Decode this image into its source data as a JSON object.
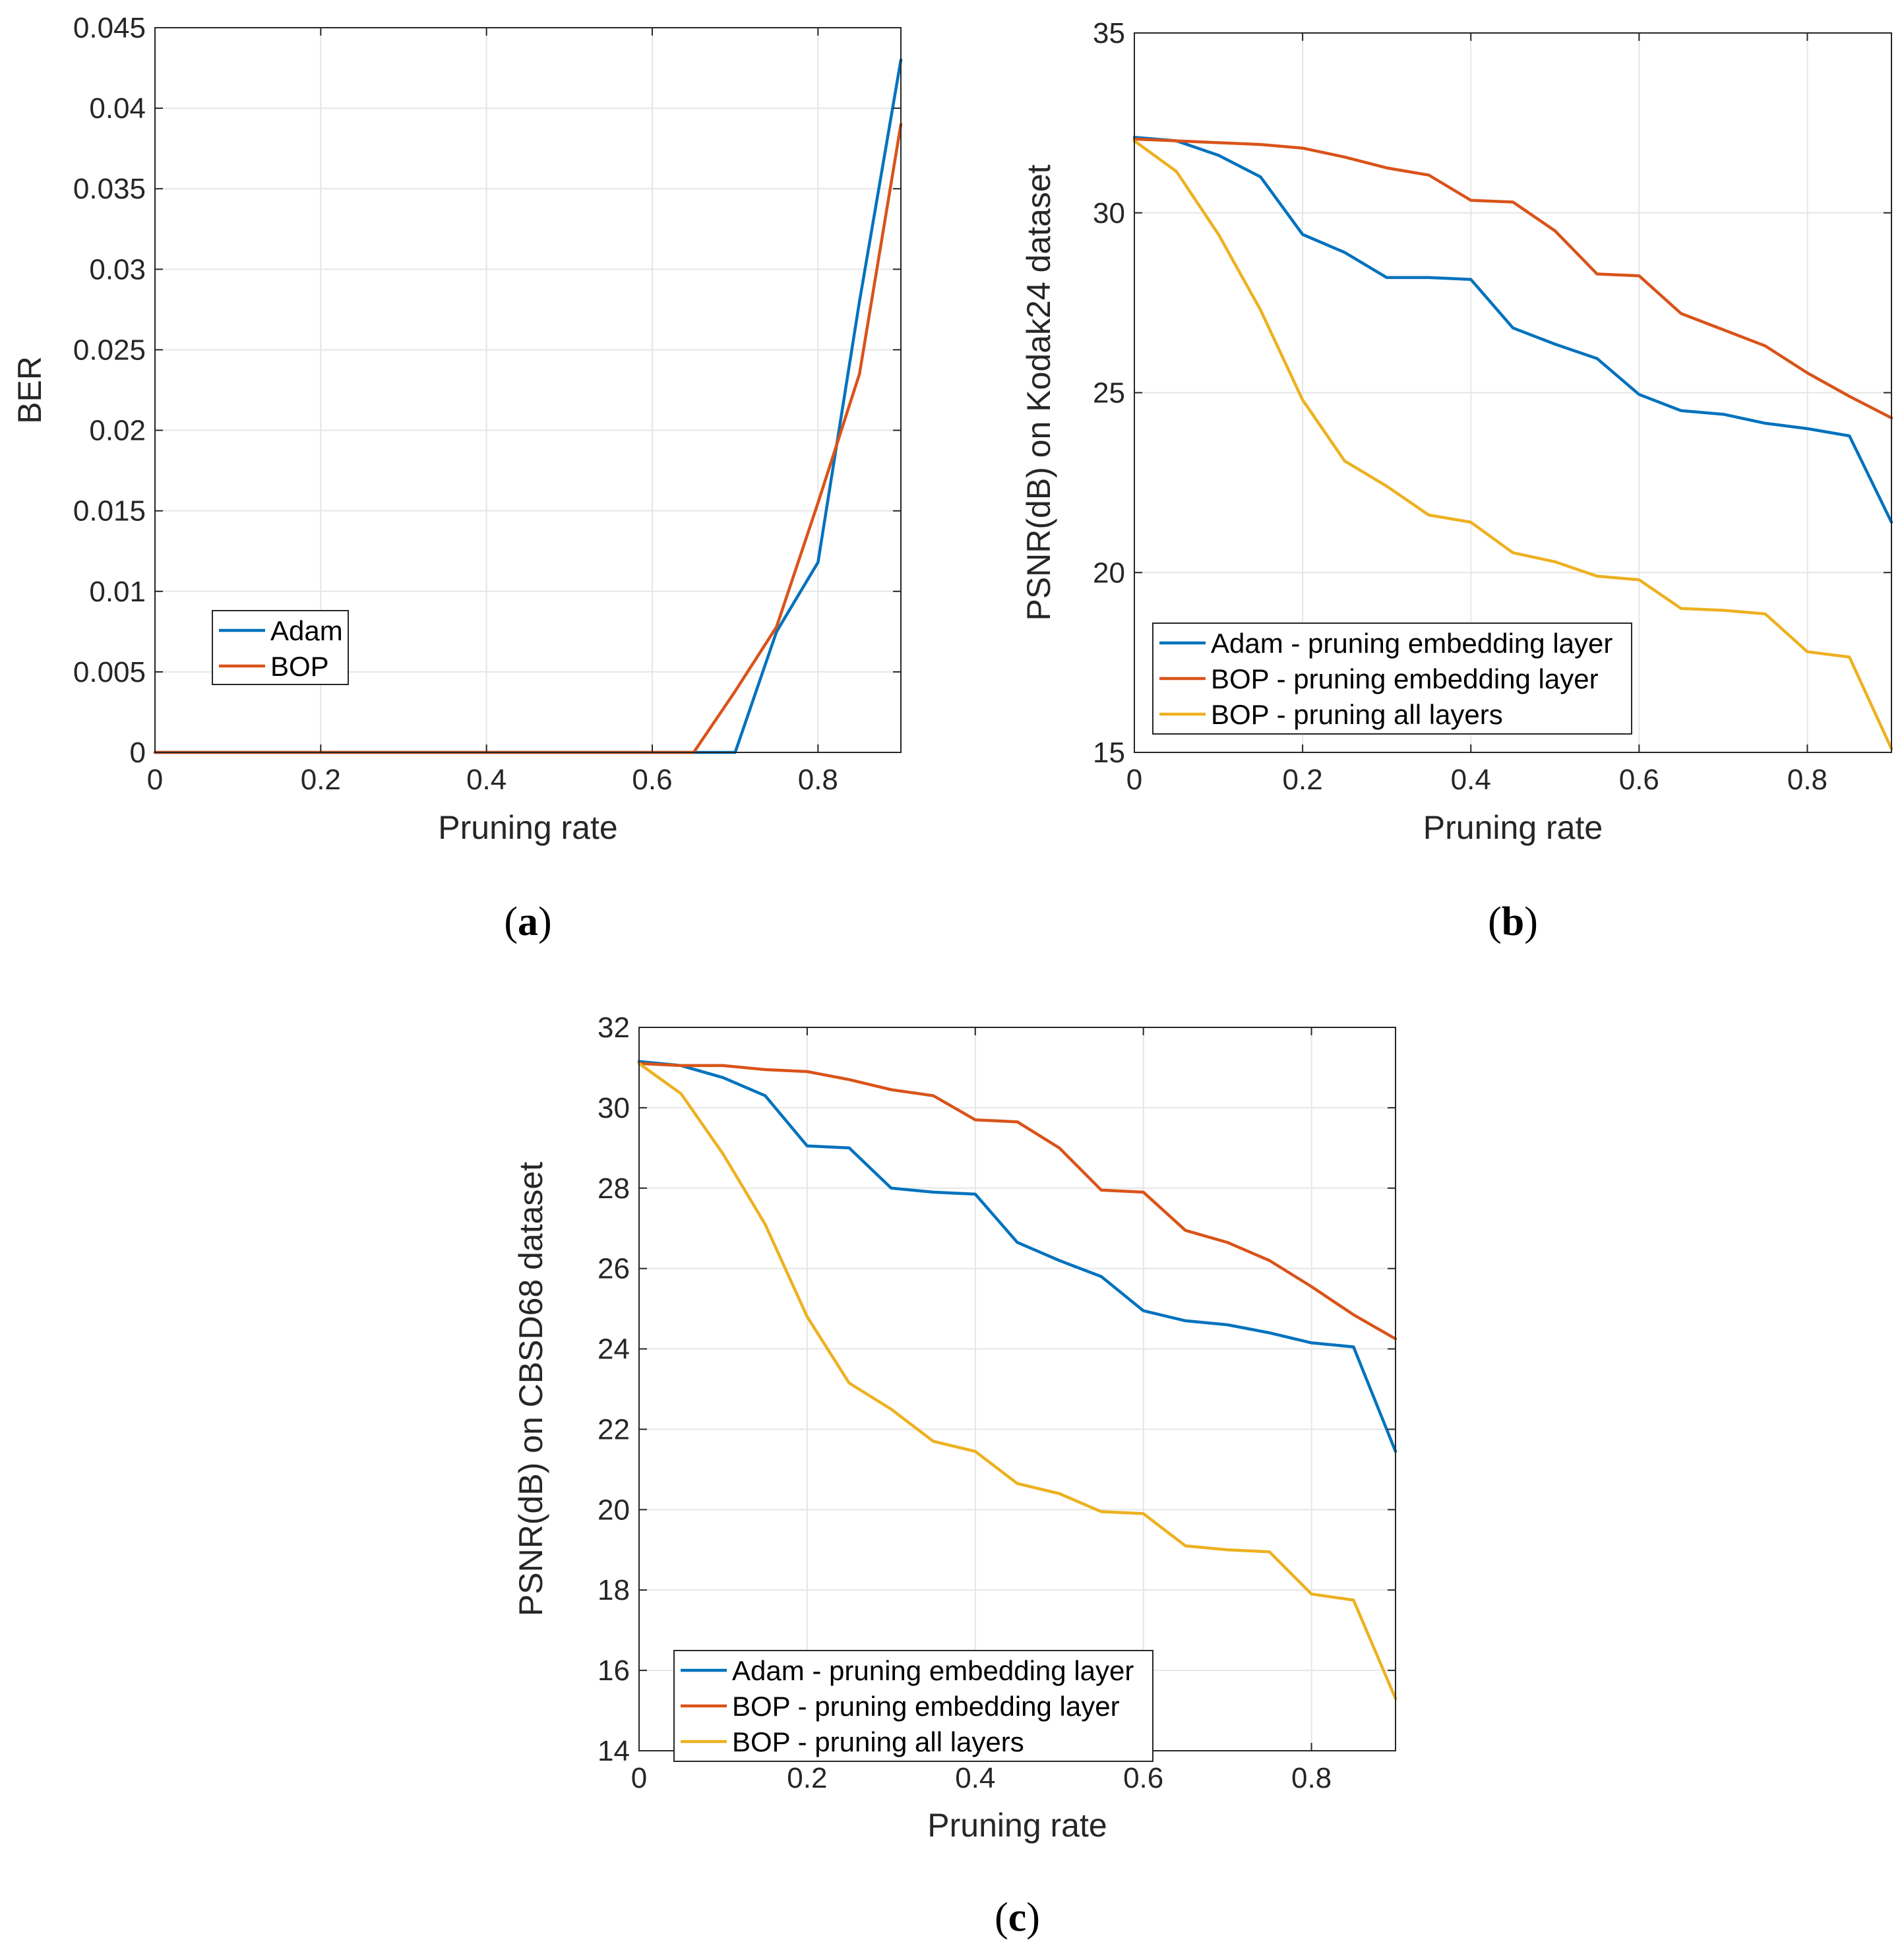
{
  "chart_data": [
    {
      "id": "a",
      "type": "line",
      "caption_letter": "a",
      "title": "",
      "xlabel": "Pruning rate",
      "ylabel": "BER",
      "xlim": [
        0,
        0.9
      ],
      "ylim": [
        0,
        0.045
      ],
      "xticks": [
        0,
        0.2,
        0.4,
        0.6,
        0.8
      ],
      "xtick_labels": [
        "0",
        "0.2",
        "0.4",
        "0.6",
        "0.8"
      ],
      "yticks": [
        0,
        0.005,
        0.01,
        0.015,
        0.02,
        0.025,
        0.03,
        0.035,
        0.04,
        0.045
      ],
      "ytick_labels": [
        "0",
        "0.005",
        "0.01",
        "0.015",
        "0.02",
        "0.025",
        "0.03",
        "0.035",
        "0.04",
        "0.045"
      ],
      "grid": true,
      "legend_position": "lower-left",
      "series": [
        {
          "name": "Adam",
          "color": "#0072BD",
          "x": [
            0,
            0.1,
            0.2,
            0.3,
            0.4,
            0.5,
            0.6,
            0.65,
            0.7,
            0.75,
            0.8,
            0.85,
            0.9
          ],
          "y": [
            0,
            0,
            0,
            0,
            0,
            0,
            0,
            0,
            0,
            0.0075,
            0.0118,
            0.028,
            0.043
          ]
        },
        {
          "name": "BOP",
          "color": "#D95319",
          "x": [
            0,
            0.1,
            0.2,
            0.3,
            0.4,
            0.5,
            0.6,
            0.65,
            0.7,
            0.75,
            0.8,
            0.85,
            0.9
          ],
          "y": [
            0,
            0,
            0,
            0,
            0,
            0,
            0,
            0,
            0.0038,
            0.0078,
            0.0155,
            0.0235,
            0.039
          ]
        }
      ]
    },
    {
      "id": "b",
      "type": "line",
      "caption_letter": "b",
      "title": "",
      "xlabel": "Pruning rate",
      "ylabel": "PSNR(dB) on Kodak24 dataset",
      "xlim": [
        0,
        0.9
      ],
      "ylim": [
        15,
        35
      ],
      "xticks": [
        0,
        0.2,
        0.4,
        0.6,
        0.8
      ],
      "xtick_labels": [
        "0",
        "0.2",
        "0.4",
        "0.6",
        "0.8"
      ],
      "yticks": [
        15,
        20,
        25,
        30,
        35
      ],
      "ytick_labels": [
        "15",
        "20",
        "25",
        "30",
        "35"
      ],
      "grid": true,
      "legend_position": "lower-left",
      "series": [
        {
          "name": "Adam - pruning embedding layer",
          "color": "#0072BD",
          "x": [
            0,
            0.05,
            0.1,
            0.15,
            0.2,
            0.25,
            0.3,
            0.35,
            0.4,
            0.45,
            0.5,
            0.55,
            0.6,
            0.65,
            0.7,
            0.75,
            0.8,
            0.85,
            0.9
          ],
          "y": [
            32.1,
            32.0,
            31.6,
            31.0,
            29.4,
            28.9,
            28.2,
            28.2,
            28.15,
            26.8,
            26.35,
            25.95,
            24.95,
            24.5,
            24.4,
            24.15,
            24.0,
            23.8,
            21.4
          ]
        },
        {
          "name": "BOP - pruning embedding layer",
          "color": "#D95319",
          "x": [
            0,
            0.05,
            0.1,
            0.15,
            0.2,
            0.25,
            0.3,
            0.35,
            0.4,
            0.45,
            0.5,
            0.55,
            0.6,
            0.65,
            0.7,
            0.75,
            0.8,
            0.85,
            0.9
          ],
          "y": [
            32.05,
            32.0,
            31.95,
            31.9,
            31.8,
            31.55,
            31.25,
            31.05,
            30.35,
            30.3,
            29.5,
            28.3,
            28.25,
            27.2,
            26.75,
            26.3,
            25.55,
            24.9,
            24.3
          ]
        },
        {
          "name": "BOP - pruning all layers",
          "color": "#EDB120",
          "x": [
            0,
            0.05,
            0.1,
            0.15,
            0.2,
            0.25,
            0.3,
            0.35,
            0.4,
            0.45,
            0.5,
            0.55,
            0.6,
            0.65,
            0.7,
            0.75,
            0.8,
            0.85,
            0.9
          ],
          "y": [
            32.0,
            31.15,
            29.4,
            27.3,
            24.8,
            23.1,
            22.4,
            21.6,
            21.4,
            20.55,
            20.3,
            19.9,
            19.8,
            19.0,
            18.95,
            18.85,
            17.8,
            17.65,
            15.1
          ]
        }
      ]
    },
    {
      "id": "c",
      "type": "line",
      "caption_letter": "c",
      "title": "",
      "xlabel": "Pruning rate",
      "ylabel": "PSNR(dB) on CBSD68 dataset",
      "xlim": [
        0,
        0.9
      ],
      "ylim": [
        14,
        32
      ],
      "xticks": [
        0,
        0.2,
        0.4,
        0.6,
        0.8
      ],
      "xtick_labels": [
        "0",
        "0.2",
        "0.4",
        "0.6",
        "0.8"
      ],
      "yticks": [
        14,
        16,
        18,
        20,
        22,
        24,
        26,
        28,
        30,
        32
      ],
      "ytick_labels": [
        "14",
        "16",
        "18",
        "20",
        "22",
        "24",
        "26",
        "28",
        "30",
        "32"
      ],
      "grid": true,
      "legend_position": "lower-left",
      "series": [
        {
          "name": "Adam - pruning embedding layer",
          "color": "#0072BD",
          "x": [
            0,
            0.05,
            0.1,
            0.15,
            0.2,
            0.25,
            0.3,
            0.35,
            0.4,
            0.45,
            0.5,
            0.55,
            0.6,
            0.65,
            0.7,
            0.75,
            0.8,
            0.85,
            0.9
          ],
          "y": [
            31.15,
            31.05,
            30.75,
            30.3,
            29.05,
            29.0,
            28.0,
            27.9,
            27.85,
            26.65,
            26.2,
            25.8,
            24.95,
            24.7,
            24.6,
            24.4,
            24.15,
            24.05,
            21.45
          ]
        },
        {
          "name": "BOP - pruning embedding layer",
          "color": "#D95319",
          "x": [
            0,
            0.05,
            0.1,
            0.15,
            0.2,
            0.25,
            0.3,
            0.35,
            0.4,
            0.45,
            0.5,
            0.55,
            0.6,
            0.65,
            0.7,
            0.75,
            0.8,
            0.85,
            0.9
          ],
          "y": [
            31.1,
            31.05,
            31.05,
            30.95,
            30.9,
            30.7,
            30.45,
            30.3,
            29.7,
            29.65,
            29.0,
            27.95,
            27.9,
            26.95,
            26.65,
            26.2,
            25.55,
            24.85,
            24.25
          ]
        },
        {
          "name": "BOP - pruning all layers",
          "color": "#EDB120",
          "x": [
            0,
            0.05,
            0.1,
            0.15,
            0.2,
            0.25,
            0.3,
            0.35,
            0.4,
            0.45,
            0.5,
            0.55,
            0.6,
            0.65,
            0.7,
            0.75,
            0.8,
            0.85,
            0.9
          ],
          "y": [
            31.1,
            30.35,
            28.85,
            27.1,
            24.8,
            23.15,
            22.5,
            21.7,
            21.45,
            20.65,
            20.4,
            19.95,
            19.9,
            19.1,
            19.0,
            18.95,
            17.9,
            17.75,
            15.3
          ]
        }
      ]
    }
  ]
}
